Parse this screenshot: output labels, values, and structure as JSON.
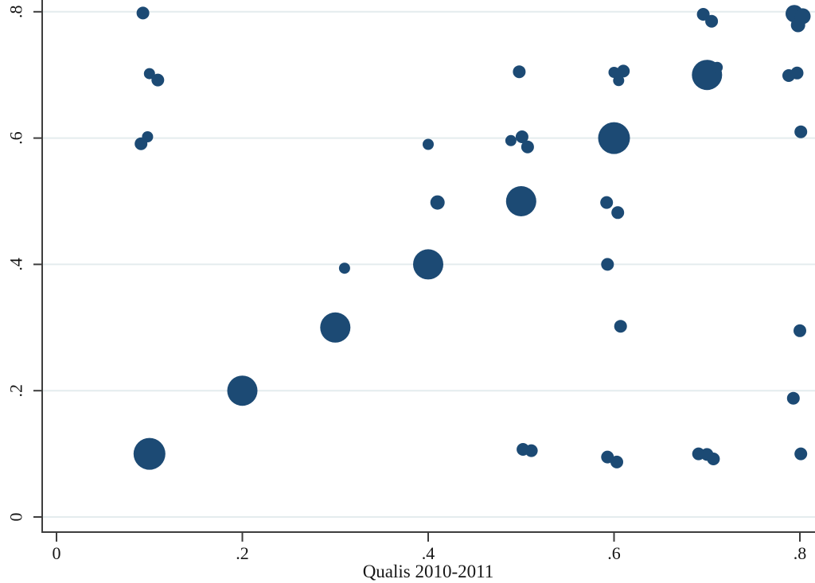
{
  "figure": {
    "kind": "stata-style weighted scatter plot",
    "background": "#ffffff"
  },
  "chart_data": {
    "type": "scatter",
    "title": "",
    "xlabel": "Qualis 2010-2011",
    "ylabel": "",
    "xlim": [
      0,
      0.816
    ],
    "ylim": [
      0,
      0.83
    ],
    "grid": "horizontal",
    "legend": "none",
    "marker_color": "#1c4a74",
    "gridline_color": "#e4ecee",
    "axis_color": "#3d3d3d",
    "x_ticks": {
      "values": [
        0,
        0.2,
        0.4,
        0.6,
        0.8
      ],
      "labels": [
        "0",
        ".2",
        ".4",
        ".6",
        ".8"
      ]
    },
    "y_ticks": {
      "values": [
        0,
        0.2,
        0.4,
        0.6,
        0.8
      ],
      "labels": [
        "0",
        ".2",
        ".4",
        ".6",
        ".8"
      ]
    },
    "size_note": "r = marker radius in px; marker area encodes frequency of observations",
    "points": [
      {
        "x": 0.1,
        "y": 0.1,
        "r": 20
      },
      {
        "x": 0.2,
        "y": 0.2,
        "r": 19
      },
      {
        "x": 0.3,
        "y": 0.3,
        "r": 19
      },
      {
        "x": 0.4,
        "y": 0.4,
        "r": 19
      },
      {
        "x": 0.5,
        "y": 0.5,
        "r": 19
      },
      {
        "x": 0.6,
        "y": 0.6,
        "r": 20
      },
      {
        "x": 0.7,
        "y": 0.7,
        "r": 19
      },
      {
        "x": 0.794,
        "y": 0.797,
        "r": 11
      },
      {
        "x": 0.803,
        "y": 0.793,
        "r": 10
      },
      {
        "x": 0.798,
        "y": 0.779,
        "r": 9
      },
      {
        "x": 0.093,
        "y": 0.798,
        "r": 8
      },
      {
        "x": 0.1,
        "y": 0.702,
        "r": 7
      },
      {
        "x": 0.109,
        "y": 0.692,
        "r": 8
      },
      {
        "x": 0.098,
        "y": 0.602,
        "r": 7
      },
      {
        "x": 0.091,
        "y": 0.591,
        "r": 8
      },
      {
        "x": 0.31,
        "y": 0.394,
        "r": 7
      },
      {
        "x": 0.4,
        "y": 0.59,
        "r": 7
      },
      {
        "x": 0.41,
        "y": 0.498,
        "r": 9
      },
      {
        "x": 0.498,
        "y": 0.705,
        "r": 8
      },
      {
        "x": 0.489,
        "y": 0.596,
        "r": 7
      },
      {
        "x": 0.501,
        "y": 0.602,
        "r": 8
      },
      {
        "x": 0.507,
        "y": 0.586,
        "r": 8
      },
      {
        "x": 0.502,
        "y": 0.107,
        "r": 8
      },
      {
        "x": 0.511,
        "y": 0.105,
        "r": 8
      },
      {
        "x": 0.6,
        "y": 0.704,
        "r": 7
      },
      {
        "x": 0.61,
        "y": 0.706,
        "r": 8
      },
      {
        "x": 0.605,
        "y": 0.691,
        "r": 7
      },
      {
        "x": 0.592,
        "y": 0.498,
        "r": 8
      },
      {
        "x": 0.604,
        "y": 0.482,
        "r": 8
      },
      {
        "x": 0.593,
        "y": 0.4,
        "r": 8
      },
      {
        "x": 0.607,
        "y": 0.302,
        "r": 8
      },
      {
        "x": 0.593,
        "y": 0.095,
        "r": 8
      },
      {
        "x": 0.603,
        "y": 0.087,
        "r": 8
      },
      {
        "x": 0.696,
        "y": 0.796,
        "r": 8
      },
      {
        "x": 0.705,
        "y": 0.785,
        "r": 8
      },
      {
        "x": 0.711,
        "y": 0.712,
        "r": 7
      },
      {
        "x": 0.691,
        "y": 0.1,
        "r": 8
      },
      {
        "x": 0.7,
        "y": 0.099,
        "r": 8
      },
      {
        "x": 0.707,
        "y": 0.092,
        "r": 8
      },
      {
        "x": 0.788,
        "y": 0.699,
        "r": 8
      },
      {
        "x": 0.797,
        "y": 0.703,
        "r": 8
      },
      {
        "x": 0.801,
        "y": 0.61,
        "r": 8
      },
      {
        "x": 0.8,
        "y": 0.295,
        "r": 8
      },
      {
        "x": 0.793,
        "y": 0.188,
        "r": 8
      },
      {
        "x": 0.801,
        "y": 0.1,
        "r": 8
      }
    ]
  }
}
